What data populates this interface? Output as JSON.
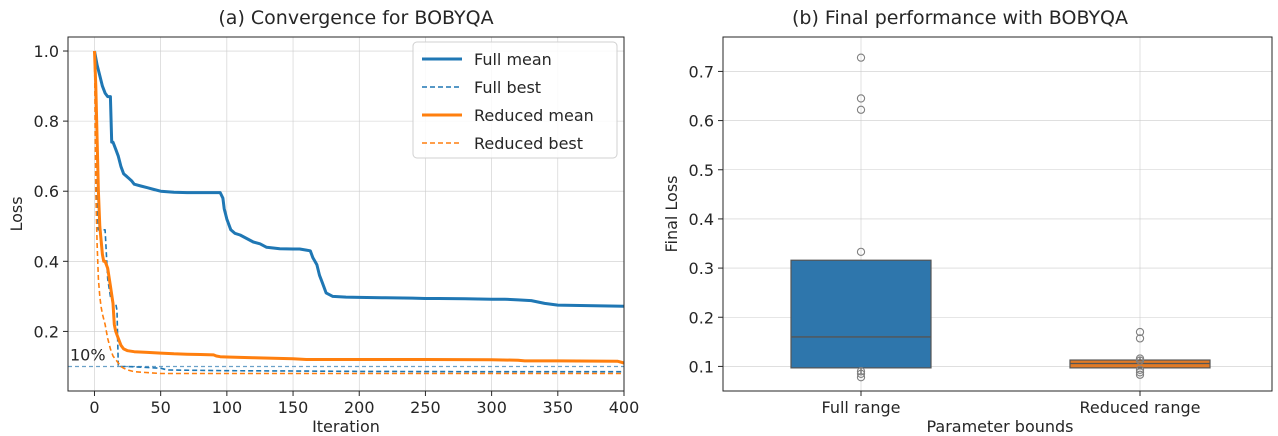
{
  "chart_data": [
    {
      "type": "line",
      "title": "(a) Convergence for BOBYQA",
      "xlabel": "Iteration",
      "ylabel": "Loss",
      "xlim": [
        -20,
        400
      ],
      "ylim": [
        0.03,
        1.04
      ],
      "xticks": [
        0,
        50,
        100,
        150,
        200,
        250,
        300,
        350,
        400
      ],
      "xtick_labels": [
        "0",
        "50",
        "100",
        "150",
        "200",
        "250",
        "300",
        "350",
        "400"
      ],
      "yticks": [
        0.2,
        0.4,
        0.6,
        0.8,
        1.0
      ],
      "ytick_labels": [
        "0.2",
        "0.4",
        "0.6",
        "0.8",
        "1.0"
      ],
      "grid": true,
      "legend_position": "top-right",
      "annotation": {
        "text": "10%",
        "y": 0.1
      },
      "series": [
        {
          "name": "Full mean",
          "color": "#1f77b4",
          "style": "solid",
          "x": [
            0,
            2,
            4,
            6,
            8,
            10,
            12,
            13,
            14,
            16,
            18,
            20,
            22,
            25,
            28,
            30,
            35,
            40,
            45,
            50,
            60,
            70,
            80,
            85,
            90,
            95,
            97,
            98,
            100,
            103,
            106,
            110,
            115,
            120,
            125,
            130,
            140,
            150,
            155,
            160,
            163,
            165,
            168,
            170,
            172,
            175,
            180,
            190,
            200,
            220,
            240,
            250,
            260,
            280,
            300,
            310,
            320,
            330,
            340,
            350,
            400
          ],
          "y": [
            1.0,
            0.96,
            0.93,
            0.9,
            0.88,
            0.87,
            0.87,
            0.74,
            0.74,
            0.72,
            0.7,
            0.67,
            0.65,
            0.64,
            0.63,
            0.62,
            0.615,
            0.61,
            0.605,
            0.6,
            0.597,
            0.596,
            0.596,
            0.596,
            0.596,
            0.596,
            0.58,
            0.55,
            0.52,
            0.49,
            0.48,
            0.475,
            0.465,
            0.455,
            0.45,
            0.44,
            0.436,
            0.435,
            0.435,
            0.432,
            0.43,
            0.41,
            0.39,
            0.36,
            0.34,
            0.31,
            0.3,
            0.298,
            0.297,
            0.296,
            0.295,
            0.294,
            0.294,
            0.293,
            0.292,
            0.292,
            0.29,
            0.288,
            0.28,
            0.275,
            0.272
          ]
        },
        {
          "name": "Full best",
          "color": "#1f77b4",
          "style": "dashed",
          "x": [
            0,
            2,
            3,
            4,
            5,
            6,
            8,
            10,
            12,
            14,
            15,
            16,
            17,
            18,
            20,
            25,
            50,
            55,
            100,
            150,
            200,
            300,
            400
          ],
          "y": [
            1.0,
            0.55,
            0.49,
            0.49,
            0.49,
            0.49,
            0.49,
            0.35,
            0.3,
            0.28,
            0.28,
            0.28,
            0.26,
            0.1,
            0.1,
            0.1,
            0.095,
            0.09,
            0.088,
            0.087,
            0.086,
            0.085,
            0.085
          ]
        },
        {
          "name": "Reduced mean",
          "color": "#ff7f0e",
          "style": "solid",
          "x": [
            0,
            1,
            2,
            3,
            4,
            5,
            6,
            7,
            8,
            10,
            12,
            14,
            15,
            16,
            18,
            20,
            22,
            25,
            30,
            40,
            50,
            60,
            70,
            80,
            90,
            92,
            95,
            100,
            110,
            120,
            150,
            160,
            200,
            250,
            300,
            320,
            325,
            350,
            395,
            400
          ],
          "y": [
            1.0,
            0.9,
            0.75,
            0.6,
            0.5,
            0.46,
            0.42,
            0.4,
            0.4,
            0.38,
            0.33,
            0.28,
            0.22,
            0.2,
            0.18,
            0.16,
            0.15,
            0.145,
            0.142,
            0.14,
            0.138,
            0.136,
            0.135,
            0.134,
            0.133,
            0.13,
            0.128,
            0.127,
            0.126,
            0.125,
            0.122,
            0.12,
            0.12,
            0.12,
            0.119,
            0.118,
            0.116,
            0.116,
            0.115,
            0.11
          ]
        },
        {
          "name": "Reduced best",
          "color": "#ff7f0e",
          "style": "dashed",
          "x": [
            0,
            1,
            2,
            3,
            4,
            5,
            6,
            8,
            10,
            12,
            14,
            16,
            18,
            20,
            22,
            25,
            30,
            50,
            100,
            200,
            300,
            400
          ],
          "y": [
            1.0,
            0.6,
            0.45,
            0.35,
            0.3,
            0.27,
            0.25,
            0.22,
            0.18,
            0.15,
            0.13,
            0.12,
            0.11,
            0.1,
            0.095,
            0.09,
            0.085,
            0.08,
            0.08,
            0.08,
            0.08,
            0.08
          ]
        }
      ]
    },
    {
      "type": "box",
      "title": "(b) Final performance with BOBYQA",
      "xlabel": "Parameter bounds",
      "ylabel": "Final Loss",
      "ylim": [
        0.05,
        0.77
      ],
      "yticks": [
        0.1,
        0.2,
        0.3,
        0.4,
        0.5,
        0.6,
        0.7
      ],
      "ytick_labels": [
        "0.1",
        "0.2",
        "0.3",
        "0.4",
        "0.5",
        "0.6",
        "0.7"
      ],
      "grid": true,
      "categories": [
        "Full range",
        "Reduced range"
      ],
      "boxes": [
        {
          "category": "Full range",
          "color": "#2e76ac",
          "q1": 0.097,
          "median": 0.16,
          "q3": 0.316,
          "whisker_low": 0.085,
          "whisker_high": 0.316,
          "outliers": [
            0.728,
            0.645,
            0.622,
            0.333,
            0.09,
            0.085,
            0.078
          ]
        },
        {
          "category": "Reduced range",
          "color": "#e07a26",
          "q1": 0.097,
          "median": 0.106,
          "q3": 0.113,
          "whisker_low": 0.094,
          "whisker_high": 0.12,
          "outliers": [
            0.17,
            0.157,
            0.116,
            0.112,
            0.093,
            0.088,
            0.083
          ]
        }
      ]
    }
  ]
}
